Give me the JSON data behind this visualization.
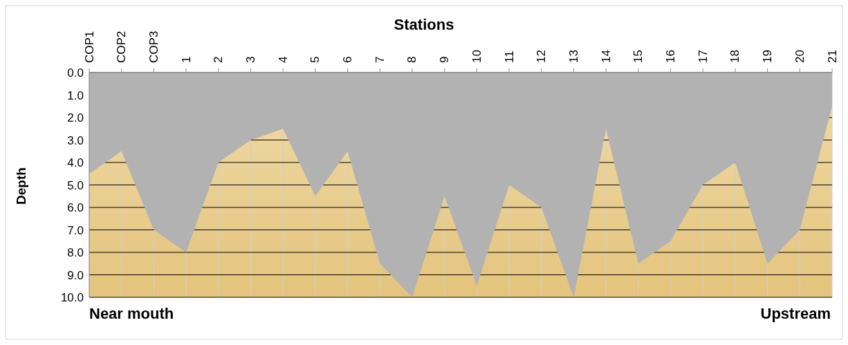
{
  "chart_data": {
    "type": "area",
    "xlabel": "Stations",
    "ylabel": "Depth",
    "categories": [
      "COP1",
      "COP2",
      "COP3",
      "1",
      "2",
      "3",
      "4",
      "5",
      "6",
      "7",
      "8",
      "9",
      "10",
      "11",
      "12",
      "13",
      "14",
      "15",
      "16",
      "17",
      "18",
      "19",
      "20",
      "21"
    ],
    "series": [
      {
        "color": "#b2b2b2",
        "values": [
          4.5,
          3.5,
          7.0,
          8.0,
          4.0,
          3.0,
          2.5,
          5.5,
          3.5,
          8.5,
          10.0,
          5.5,
          9.5,
          5.0,
          6.0,
          10.0,
          2.5,
          8.5,
          7.5,
          5.0,
          4.0,
          8.5,
          7.0,
          1.5
        ]
      }
    ],
    "ylim": [
      10,
      0
    ],
    "yticks": [
      {
        "value": 0,
        "label": "0.0"
      },
      {
        "value": 1,
        "label": "1.0"
      },
      {
        "value": 2,
        "label": "2.0"
      },
      {
        "value": 3,
        "label": "3.0"
      },
      {
        "value": 4,
        "label": "4.0"
      },
      {
        "value": 5,
        "label": "5.0"
      },
      {
        "value": 6,
        "label": "6.0"
      },
      {
        "value": 7,
        "label": "7.0"
      },
      {
        "value": 8,
        "label": "8.0"
      },
      {
        "value": 9,
        "label": "9.0"
      },
      {
        "value": 10,
        "label": "10.0"
      }
    ],
    "grid": true,
    "annotations": [
      "Near mouth",
      "Upstream"
    ]
  }
}
